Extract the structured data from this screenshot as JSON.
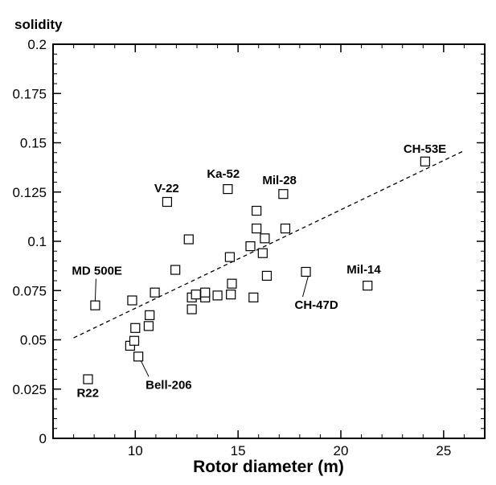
{
  "chart_data": {
    "type": "scatter",
    "xlabel": "Rotor diameter (m)",
    "ylabel": "solidity",
    "xlim": [
      6,
      27
    ],
    "ylim": [
      0,
      0.2
    ],
    "x_ticks": [
      10,
      15,
      20,
      25
    ],
    "x_tick_labels": [
      "10",
      "15",
      "20",
      "25"
    ],
    "y_ticks": [
      0,
      0.025,
      0.05,
      0.075,
      0.1,
      0.125,
      0.15,
      0.175,
      0.2
    ],
    "y_tick_labels": [
      "0",
      "0.025",
      "0.05",
      "0.075",
      "0.1",
      "0.125",
      "0.15",
      "0.175",
      "0.2"
    ],
    "grid": false,
    "marker": "open-square",
    "trendline": {
      "style": "dashed",
      "x": [
        7,
        26
      ],
      "y": [
        0.051,
        0.146
      ]
    },
    "points": [
      {
        "x": 7.7,
        "y": 0.03
      },
      {
        "x": 8.05,
        "y": 0.0675
      },
      {
        "x": 9.75,
        "y": 0.047
      },
      {
        "x": 9.85,
        "y": 0.07
      },
      {
        "x": 9.95,
        "y": 0.0495
      },
      {
        "x": 10.0,
        "y": 0.056
      },
      {
        "x": 10.15,
        "y": 0.0415
      },
      {
        "x": 10.65,
        "y": 0.057
      },
      {
        "x": 10.7,
        "y": 0.0625
      },
      {
        "x": 10.95,
        "y": 0.074
      },
      {
        "x": 11.55,
        "y": 0.12
      },
      {
        "x": 11.95,
        "y": 0.0855
      },
      {
        "x": 12.6,
        "y": 0.101
      },
      {
        "x": 12.75,
        "y": 0.0655
      },
      {
        "x": 12.75,
        "y": 0.0715
      },
      {
        "x": 12.95,
        "y": 0.073
      },
      {
        "x": 13.4,
        "y": 0.0715
      },
      {
        "x": 13.4,
        "y": 0.074
      },
      {
        "x": 14.0,
        "y": 0.0725
      },
      {
        "x": 14.5,
        "y": 0.1265
      },
      {
        "x": 14.6,
        "y": 0.092
      },
      {
        "x": 14.65,
        "y": 0.073
      },
      {
        "x": 14.7,
        "y": 0.0785
      },
      {
        "x": 15.6,
        "y": 0.0975
      },
      {
        "x": 15.75,
        "y": 0.0715
      },
      {
        "x": 15.9,
        "y": 0.1155
      },
      {
        "x": 15.9,
        "y": 0.1065
      },
      {
        "x": 16.2,
        "y": 0.094
      },
      {
        "x": 16.3,
        "y": 0.1015
      },
      {
        "x": 16.4,
        "y": 0.0825
      },
      {
        "x": 17.2,
        "y": 0.124
      },
      {
        "x": 17.3,
        "y": 0.1065
      },
      {
        "x": 18.3,
        "y": 0.0845
      },
      {
        "x": 21.3,
        "y": 0.0775
      },
      {
        "x": 24.1,
        "y": 0.1405
      }
    ],
    "annotations": [
      {
        "text": "R22",
        "x": 7.7,
        "y": 0.03
      },
      {
        "text": "MD 500E",
        "x": 8.05,
        "y": 0.0675
      },
      {
        "text": "Bell-206",
        "x": 10.15,
        "y": 0.0415
      },
      {
        "text": "V-22",
        "x": 11.55,
        "y": 0.12
      },
      {
        "text": "Ka-52",
        "x": 14.5,
        "y": 0.1265
      },
      {
        "text": "Mil-28",
        "x": 17.2,
        "y": 0.124
      },
      {
        "text": "CH-47D",
        "x": 18.3,
        "y": 0.0845
      },
      {
        "text": "Mil-14",
        "x": 21.3,
        "y": 0.0775
      },
      {
        "text": "CH-53E",
        "x": 24.1,
        "y": 0.1405
      }
    ]
  }
}
